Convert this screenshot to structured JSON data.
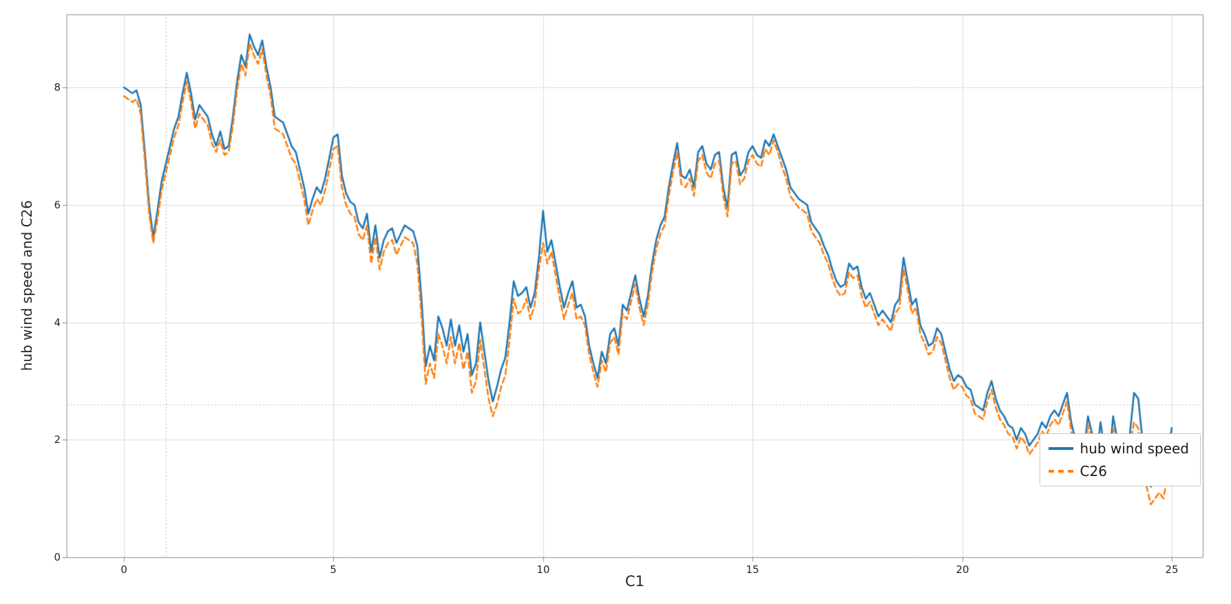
{
  "figure": {
    "xlabel": "C1",
    "ylabel": "hub wind speed and C26"
  },
  "legend": {
    "items": [
      {
        "label": "hub wind speed",
        "color": "#1f77b4",
        "line_style": "solid"
      },
      {
        "label": "C26",
        "color": "#ff7f0e",
        "line_style": "dashed"
      }
    ]
  },
  "chart_data": {
    "type": "line",
    "title": "",
    "xlabel": "C1",
    "ylabel": "hub wind speed and C26",
    "xlim": [
      -1.36,
      25.72
    ],
    "ylim": [
      0,
      9.25
    ],
    "grid": true,
    "legend_position": "lower right",
    "x_ticks": [
      0,
      5,
      10,
      15,
      20,
      25
    ],
    "y_ticks": [
      0,
      2,
      4,
      6,
      8
    ],
    "x_tick_labels": [
      "0",
      "5",
      "10",
      "15",
      "20",
      "25"
    ],
    "y_tick_labels": [
      "0",
      "2",
      "4",
      "6",
      "8"
    ],
    "crosshair": {
      "x": 1.0,
      "y": 2.6
    },
    "x_start": 0,
    "x_step": 0.1,
    "series": [
      {
        "name": "hub wind speed",
        "color": "#1f77b4",
        "style": "solid",
        "values": [
          8.0,
          7.95,
          7.9,
          7.95,
          7.7,
          6.9,
          6.0,
          5.45,
          5.9,
          6.4,
          6.7,
          7.0,
          7.3,
          7.5,
          7.9,
          8.25,
          7.9,
          7.45,
          7.7,
          7.6,
          7.5,
          7.2,
          7.0,
          7.25,
          6.95,
          7.0,
          7.5,
          8.1,
          8.55,
          8.35,
          8.9,
          8.7,
          8.55,
          8.8,
          8.35,
          8.0,
          7.5,
          7.45,
          7.4,
          7.2,
          7.0,
          6.9,
          6.6,
          6.3,
          5.85,
          6.1,
          6.3,
          6.2,
          6.45,
          6.8,
          7.15,
          7.2,
          6.5,
          6.2,
          6.05,
          6.0,
          5.7,
          5.6,
          5.85,
          5.2,
          5.65,
          5.1,
          5.4,
          5.55,
          5.6,
          5.35,
          5.5,
          5.65,
          5.6,
          5.55,
          5.3,
          4.4,
          3.25,
          3.6,
          3.35,
          4.1,
          3.9,
          3.6,
          4.05,
          3.6,
          3.95,
          3.5,
          3.8,
          3.1,
          3.3,
          4.0,
          3.5,
          3.0,
          2.65,
          2.9,
          3.2,
          3.4,
          4.0,
          4.7,
          4.45,
          4.5,
          4.6,
          4.25,
          4.5,
          5.1,
          5.9,
          5.2,
          5.4,
          5.0,
          4.6,
          4.25,
          4.5,
          4.7,
          4.25,
          4.3,
          4.1,
          3.6,
          3.3,
          3.05,
          3.5,
          3.3,
          3.8,
          3.9,
          3.6,
          4.3,
          4.2,
          4.5,
          4.8,
          4.4,
          4.1,
          4.45,
          5.0,
          5.4,
          5.65,
          5.8,
          6.3,
          6.7,
          7.05,
          6.5,
          6.45,
          6.6,
          6.3,
          6.9,
          7.0,
          6.7,
          6.6,
          6.85,
          6.9,
          6.3,
          5.95,
          6.85,
          6.9,
          6.5,
          6.6,
          6.9,
          7.0,
          6.85,
          6.8,
          7.1,
          7.0,
          7.2,
          7.0,
          6.8,
          6.6,
          6.3,
          6.2,
          6.1,
          6.05,
          6.0,
          5.7,
          5.6,
          5.5,
          5.3,
          5.15,
          4.9,
          4.7,
          4.6,
          4.65,
          5.0,
          4.9,
          4.95,
          4.6,
          4.4,
          4.5,
          4.3,
          4.1,
          4.2,
          4.1,
          4.0,
          4.3,
          4.4,
          5.1,
          4.7,
          4.3,
          4.4,
          3.95,
          3.8,
          3.6,
          3.65,
          3.9,
          3.8,
          3.5,
          3.2,
          3.0,
          3.1,
          3.05,
          2.9,
          2.85,
          2.6,
          2.55,
          2.5,
          2.8,
          3.0,
          2.7,
          2.5,
          2.4,
          2.25,
          2.2,
          2.0,
          2.2,
          2.1,
          1.9,
          2.0,
          2.1,
          2.3,
          2.2,
          2.4,
          2.5,
          2.4,
          2.6,
          2.8,
          2.3,
          2.0,
          1.5,
          1.8,
          2.4,
          2.1,
          1.7,
          2.3,
          1.8,
          1.6,
          2.4,
          2.0,
          1.6,
          2.0,
          2.1,
          2.8,
          2.7,
          2.0,
          1.6,
          1.2,
          1.3,
          1.4,
          1.3,
          1.7,
          2.2
        ]
      },
      {
        "name": "C26",
        "color": "#ff7f0e",
        "style": "dashed",
        "values": [
          7.85,
          7.8,
          7.75,
          7.8,
          7.55,
          6.75,
          5.85,
          5.35,
          5.75,
          6.25,
          6.55,
          6.85,
          7.15,
          7.35,
          7.75,
          8.1,
          7.75,
          7.3,
          7.55,
          7.45,
          7.35,
          7.05,
          6.9,
          7.1,
          6.85,
          6.9,
          7.35,
          7.95,
          8.4,
          8.2,
          8.75,
          8.55,
          8.4,
          8.65,
          8.2,
          7.85,
          7.3,
          7.25,
          7.2,
          7.0,
          6.8,
          6.7,
          6.4,
          6.1,
          5.65,
          5.9,
          6.1,
          6.0,
          6.25,
          6.6,
          6.95,
          7.0,
          6.3,
          6.0,
          5.85,
          5.8,
          5.5,
          5.4,
          5.65,
          5.0,
          5.45,
          4.9,
          5.2,
          5.35,
          5.4,
          5.15,
          5.3,
          5.45,
          5.4,
          5.35,
          5.0,
          4.1,
          2.95,
          3.3,
          3.05,
          3.8,
          3.6,
          3.3,
          3.75,
          3.3,
          3.65,
          3.2,
          3.5,
          2.8,
          3.0,
          3.7,
          3.2,
          2.7,
          2.4,
          2.6,
          2.9,
          3.1,
          3.7,
          4.4,
          4.15,
          4.2,
          4.4,
          4.05,
          4.3,
          4.9,
          5.35,
          5.0,
          5.2,
          4.8,
          4.4,
          4.05,
          4.3,
          4.5,
          4.05,
          4.1,
          3.95,
          3.45,
          3.15,
          2.9,
          3.35,
          3.15,
          3.65,
          3.75,
          3.45,
          4.15,
          4.05,
          4.35,
          4.65,
          4.25,
          3.95,
          4.3,
          4.85,
          5.25,
          5.5,
          5.65,
          6.15,
          6.55,
          6.9,
          6.35,
          6.3,
          6.45,
          6.15,
          6.75,
          6.85,
          6.55,
          6.45,
          6.7,
          6.75,
          6.15,
          5.8,
          6.7,
          6.75,
          6.35,
          6.45,
          6.75,
          6.85,
          6.7,
          6.65,
          6.95,
          6.85,
          7.1,
          6.9,
          6.65,
          6.45,
          6.15,
          6.05,
          5.95,
          5.9,
          5.85,
          5.55,
          5.45,
          5.35,
          5.15,
          5.0,
          4.75,
          4.55,
          4.45,
          4.5,
          4.85,
          4.75,
          4.8,
          4.45,
          4.25,
          4.35,
          4.15,
          3.95,
          4.05,
          3.95,
          3.85,
          4.15,
          4.25,
          4.9,
          4.55,
          4.15,
          4.25,
          3.8,
          3.65,
          3.45,
          3.5,
          3.75,
          3.65,
          3.35,
          3.05,
          2.85,
          2.95,
          2.9,
          2.75,
          2.7,
          2.45,
          2.4,
          2.35,
          2.65,
          2.85,
          2.55,
          2.35,
          2.25,
          2.1,
          2.05,
          1.85,
          2.05,
          1.95,
          1.75,
          1.85,
          1.95,
          2.15,
          2.05,
          2.25,
          2.35,
          2.25,
          2.45,
          2.65,
          2.15,
          1.85,
          1.35,
          1.65,
          2.25,
          1.95,
          1.5,
          2.1,
          1.6,
          1.4,
          2.2,
          1.8,
          1.4,
          1.8,
          1.9,
          2.3,
          2.2,
          1.6,
          1.2,
          0.9,
          1.0,
          1.1,
          1.0,
          1.4,
          1.6
        ]
      }
    ]
  }
}
